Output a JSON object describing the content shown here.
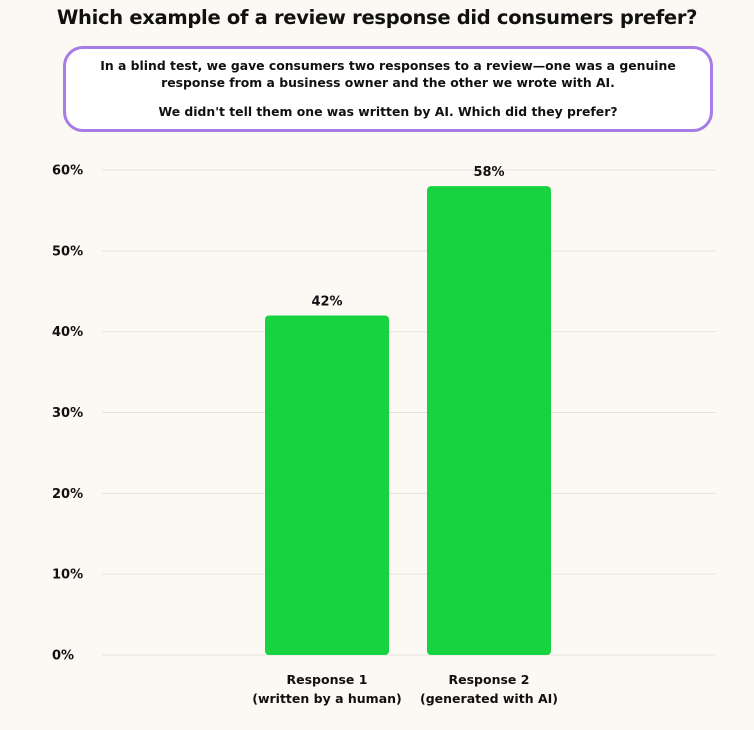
{
  "title": "Which example of a review response did consumers prefer?",
  "note": {
    "line1": "In a blind test, we gave consumers two responses to a review—one was a genuine response from a business owner and the other we wrote with AI.",
    "line2": "We didn't tell them one was written by AI. Which did they prefer?"
  },
  "colors": {
    "bar": "#17d33f",
    "grid": "#e6e3de",
    "border": "#a87ce6",
    "background": "#fcf9f4"
  },
  "chart_data": {
    "type": "bar",
    "categories": [
      [
        "Response 1",
        "(written by a human)"
      ],
      [
        "Response 2",
        "(generated with AI)"
      ]
    ],
    "values": [
      42,
      58
    ],
    "value_labels": [
      "42%",
      "58%"
    ],
    "ylim": [
      0,
      60
    ],
    "yticks": [
      0,
      10,
      20,
      30,
      40,
      50,
      60
    ],
    "ytick_labels": [
      "0%",
      "10%",
      "20%",
      "30%",
      "40%",
      "50%",
      "60%"
    ],
    "grid": true,
    "xlabel": "",
    "ylabel": ""
  }
}
